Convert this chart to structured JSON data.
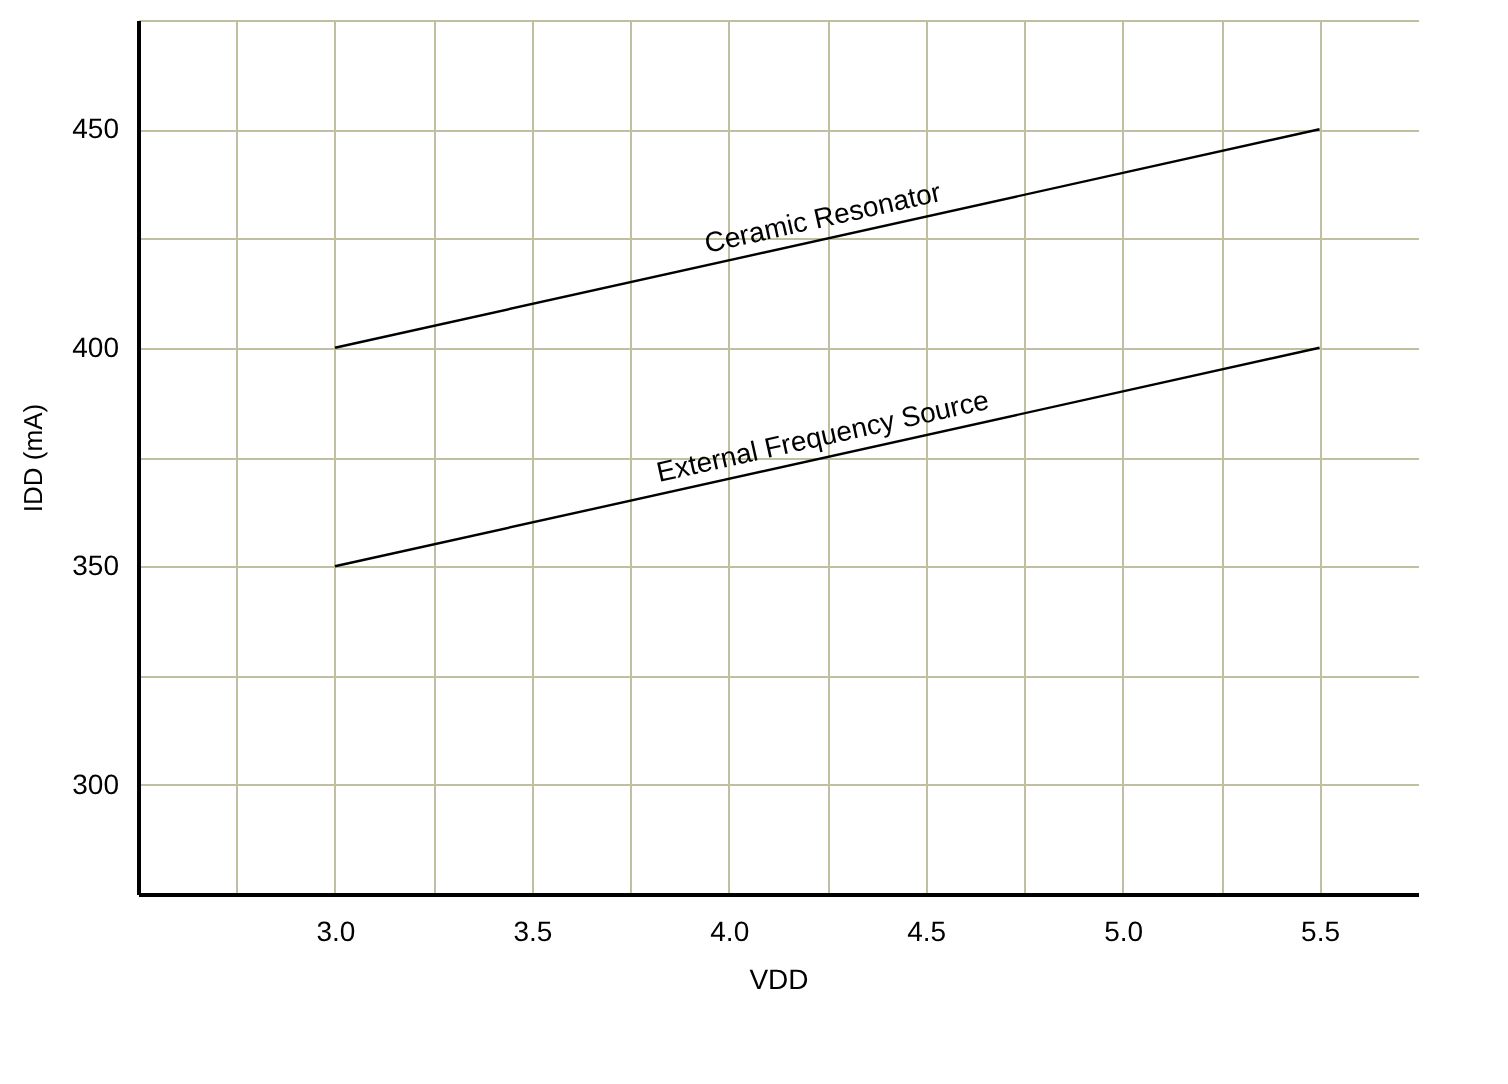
{
  "chart_data": {
    "type": "line",
    "xlabel": "VDD",
    "ylabel": "IDD (mA)",
    "x": [
      3.0,
      5.5
    ],
    "series": [
      {
        "name": "Ceramic Resonator",
        "color": "#000000",
        "values": [
          400,
          450
        ]
      },
      {
        "name": "External Frequency Source",
        "color": "#000000",
        "values": [
          350,
          400
        ]
      }
    ],
    "xlim": [
      2.5,
      5.75
    ],
    "ylim": [
      275,
      475
    ],
    "xticks": [
      {
        "value": 2.75,
        "label": null
      },
      {
        "value": 3,
        "label": "3.0"
      },
      {
        "value": 3.25,
        "label": null
      },
      3.5,
      {
        "value": 3.75,
        "label": null
      },
      {
        "value": 4,
        "label": "4.0"
      },
      {
        "value": 4.25,
        "label": null
      },
      4.5,
      {
        "value": 4.75,
        "label": null
      },
      {
        "value": 5,
        "label": "5.0"
      },
      {
        "value": 5.25,
        "label": null
      },
      5.5
    ],
    "yticks": [
      300,
      {
        "value": 325,
        "label": null
      },
      350,
      {
        "value": 375,
        "label": null
      },
      400,
      {
        "value": 425,
        "label": null
      },
      450,
      {
        "value": 475,
        "label": null
      }
    ],
    "grid": true,
    "marker": "none",
    "line_style": "solid"
  }
}
